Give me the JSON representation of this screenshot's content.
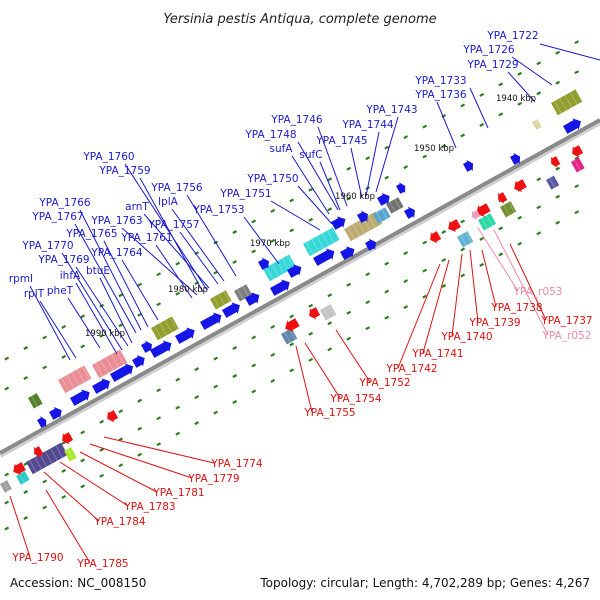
{
  "title": "Yersinia pestis Antiqua, complete genome",
  "footer": {
    "accession": "Accession: NC_008150",
    "summary": "Topology: circular; Length: 4,702,289 bp; Genes: 4,267"
  },
  "colors": {
    "forward_label": "#1a1acc",
    "reverse_label": "#dd1111",
    "rna_label": "#f08aa8",
    "backbone": "#8a8a8a",
    "tick": "#2e7d1e"
  },
  "kbp_marks": [
    {
      "id": "1940",
      "text": "1940 kbp"
    },
    {
      "id": "1950",
      "text": "1950 kbp"
    },
    {
      "id": "1960",
      "text": "1960 kbp"
    },
    {
      "id": "1970",
      "text": "1970 kbp"
    },
    {
      "id": "1980",
      "text": "1980 kbp"
    },
    {
      "id": "1990",
      "text": "1990 kbp"
    }
  ],
  "forward_labels": [
    {
      "id": "YPA_1722",
      "text": "YPA_1722"
    },
    {
      "id": "YPA_1726",
      "text": "YPA_1726"
    },
    {
      "id": "YPA_1729",
      "text": "YPA_1729"
    },
    {
      "id": "YPA_1733",
      "text": "YPA_1733"
    },
    {
      "id": "YPA_1736",
      "text": "YPA_1736"
    },
    {
      "id": "YPA_1743",
      "text": "YPA_1743"
    },
    {
      "id": "YPA_1744",
      "text": "YPA_1744"
    },
    {
      "id": "YPA_1745",
      "text": "YPA_1745"
    },
    {
      "id": "YPA_1746",
      "text": "YPA_1746"
    },
    {
      "id": "YPA_1748",
      "text": "YPA_1748"
    },
    {
      "id": "sufA",
      "text": "sufA"
    },
    {
      "id": "sufC",
      "text": "sufC"
    },
    {
      "id": "YPA_1750",
      "text": "YPA_1750"
    },
    {
      "id": "YPA_1751",
      "text": "YPA_1751"
    },
    {
      "id": "YPA_1753",
      "text": "YPA_1753"
    },
    {
      "id": "YPA_1756",
      "text": "YPA_1756"
    },
    {
      "id": "lplA",
      "text": "lplA"
    },
    {
      "id": "YPA_1757",
      "text": "YPA_1757"
    },
    {
      "id": "arnT",
      "text": "arnT"
    },
    {
      "id": "YPA_1760",
      "text": "YPA_1760"
    },
    {
      "id": "YPA_1759",
      "text": "YPA_1759"
    },
    {
      "id": "YPA_1763",
      "text": "YPA_1763"
    },
    {
      "id": "YPA_1761",
      "text": "YPA_1761"
    },
    {
      "id": "YPA_1766",
      "text": "YPA_1766"
    },
    {
      "id": "YPA_1767",
      "text": "YPA_1767"
    },
    {
      "id": "YPA_1765",
      "text": "YPA_1765"
    },
    {
      "id": "YPA_1764",
      "text": "YPA_1764"
    },
    {
      "id": "YPA_1770",
      "text": "YPA_1770"
    },
    {
      "id": "YPA_1769",
      "text": "YPA_1769"
    },
    {
      "id": "btuE",
      "text": "btuE"
    },
    {
      "id": "ihfA",
      "text": "ihfA"
    },
    {
      "id": "rpmI",
      "text": "rpmI"
    },
    {
      "id": "rplT",
      "text": "rplT"
    },
    {
      "id": "pheT",
      "text": "pheT"
    }
  ],
  "reverse_labels": [
    {
      "id": "YPA_1737",
      "text": "YPA_1737"
    },
    {
      "id": "YPA_1738",
      "text": "YPA_1738"
    },
    {
      "id": "YPA_1739",
      "text": "YPA_1739"
    },
    {
      "id": "YPA_1740",
      "text": "YPA_1740"
    },
    {
      "id": "YPA_1741",
      "text": "YPA_1741"
    },
    {
      "id": "YPA_1742",
      "text": "YPA_1742"
    },
    {
      "id": "YPA_1752",
      "text": "YPA_1752"
    },
    {
      "id": "YPA_1754",
      "text": "YPA_1754"
    },
    {
      "id": "YPA_1755",
      "text": "YPA_1755"
    },
    {
      "id": "YPA_1774",
      "text": "YPA_1774"
    },
    {
      "id": "YPA_1779",
      "text": "YPA_1779"
    },
    {
      "id": "YPA_1781",
      "text": "YPA_1781"
    },
    {
      "id": "YPA_1783",
      "text": "YPA_1783"
    },
    {
      "id": "YPA_1784",
      "text": "YPA_1784"
    },
    {
      "id": "YPA_1785",
      "text": "YPA_1785"
    },
    {
      "id": "YPA_1790",
      "text": "YPA_1790"
    }
  ],
  "rna_labels": [
    {
      "id": "YPA_r053",
      "text": "YPA_r053"
    },
    {
      "id": "YPA_r052",
      "text": "YPA_r052"
    }
  ]
}
